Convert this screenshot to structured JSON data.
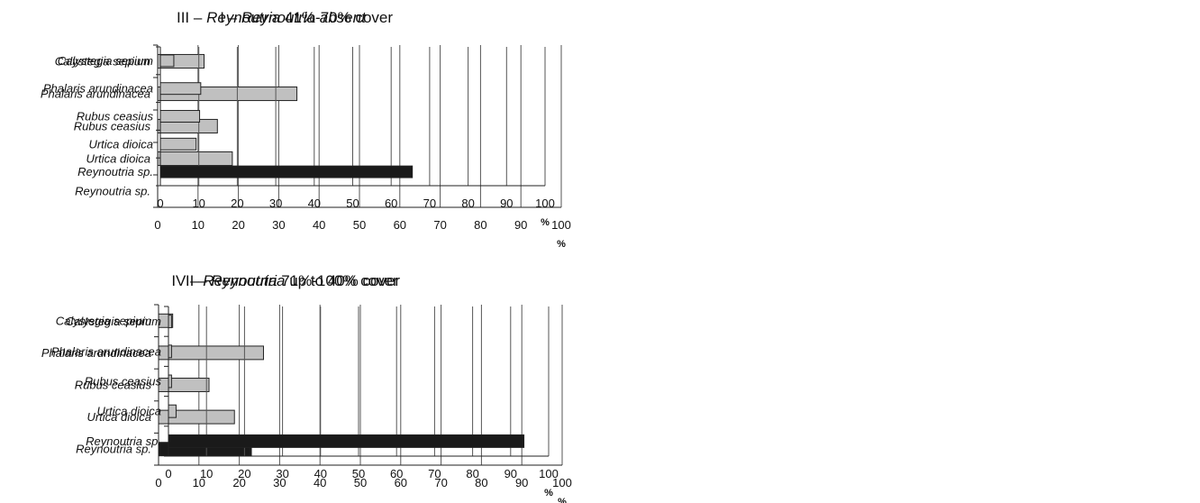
{
  "charts": [
    {
      "id": "p1",
      "title_prefix": "I – ",
      "title_italic": "Reynoutria absent",
      "title_suffix": "",
      "chart_data": {
        "type": "bar",
        "orientation": "horizontal",
        "categories": [
          "Calystegia sepium",
          "Phalaris arundinacea",
          "Rubus ceasius",
          "Urtica dioica",
          "Reynoutria sp."
        ],
        "values": [
          11.5,
          34.5,
          14.8,
          18.5,
          0
        ],
        "bar_colors": [
          "#c0c0c0",
          "#c0c0c0",
          "#c0c0c0",
          "#c0c0c0",
          "#1a1a1a"
        ],
        "xlim": [
          0,
          100
        ],
        "xticks": [
          "0",
          "10",
          "20",
          "30",
          "40",
          "50",
          "60",
          "70",
          "80",
          "90",
          "100"
        ],
        "xlabel": "%",
        "grid": true
      }
    },
    {
      "id": "p3",
      "title_prefix": "III – ",
      "title_italic": "Reynoutria",
      "title_suffix": " 41%-70% cover",
      "chart_data": {
        "type": "bar",
        "orientation": "horizontal",
        "categories": [
          "Calystegia sepium",
          "Phalaris arundinacea",
          "Rubus ceasius",
          "Urtica dioica",
          "Reynoutria sp."
        ],
        "values": [
          3.5,
          10.5,
          10.2,
          9.3,
          65.5
        ],
        "bar_colors": [
          "#c0c0c0",
          "#c0c0c0",
          "#c0c0c0",
          "#c0c0c0",
          "#1a1a1a"
        ],
        "xlim": [
          0,
          100
        ],
        "xticks": [
          "0",
          "10",
          "20",
          "30",
          "40",
          "50",
          "60",
          "70",
          "80",
          "90",
          "100"
        ],
        "xlabel": "%",
        "grid": true
      }
    },
    {
      "id": "p2",
      "title_prefix": "II – ",
      "title_italic": "Reynoutria",
      "title_suffix": " up to 40% cover",
      "chart_data": {
        "type": "bar",
        "orientation": "horizontal",
        "categories": [
          "Calystegia sepium",
          "Phalaris arundinacea",
          "Rubus ceasius",
          "Urtica dioica",
          "Reynoutria sp."
        ],
        "values": [
          3.5,
          26,
          12.5,
          18.8,
          23
        ],
        "bar_colors": [
          "#c0c0c0",
          "#c0c0c0",
          "#c0c0c0",
          "#c0c0c0",
          "#1a1a1a"
        ],
        "xlim": [
          0,
          100
        ],
        "xticks": [
          "0",
          "10",
          "20",
          "30",
          "40",
          "50",
          "60",
          "70",
          "80",
          "90",
          "100"
        ],
        "xlabel": "%",
        "grid": true
      }
    },
    {
      "id": "p4",
      "title_prefix": "IV – ",
      "title_italic": "Reynoutria",
      "title_suffix": " 71%-100% cover",
      "chart_data": {
        "type": "bar",
        "orientation": "horizontal",
        "categories": [
          "Calystegia sepium",
          "Phalaris arundinacea",
          "Rubus ceasius",
          "Urtica dioica",
          "Reynoutria sp."
        ],
        "values": [
          0.8,
          0.8,
          0.8,
          2,
          93.5
        ],
        "bar_colors": [
          "#c0c0c0",
          "#c0c0c0",
          "#c0c0c0",
          "#c0c0c0",
          "#1a1a1a"
        ],
        "xlim": [
          0,
          100
        ],
        "xticks": [
          "0",
          "10",
          "20",
          "30",
          "40",
          "50",
          "60",
          "70",
          "80",
          "90",
          "100"
        ],
        "xlabel": "%",
        "grid": true
      }
    }
  ]
}
